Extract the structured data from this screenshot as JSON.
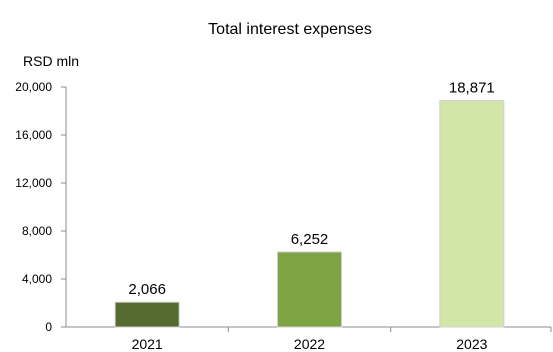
{
  "chart_data": {
    "type": "bar",
    "title": "Total interest expenses",
    "ylabel": "RSD mln",
    "xlabel": "",
    "categories": [
      "2021",
      "2022",
      "2023"
    ],
    "values": [
      2066,
      6252,
      18871
    ],
    "data_labels": [
      "2,066",
      "6,252",
      "18,871"
    ],
    "bar_colors": [
      "#556b2f",
      "#7ea444",
      "#d2e6a8"
    ],
    "ylim": [
      0,
      20000
    ],
    "yticks": [
      0,
      4000,
      8000,
      12000,
      16000,
      20000
    ],
    "ytick_labels": [
      "0",
      "4,000",
      "8,000",
      "12,000",
      "16,000",
      "20,000"
    ],
    "grid": false,
    "legend": "none"
  }
}
